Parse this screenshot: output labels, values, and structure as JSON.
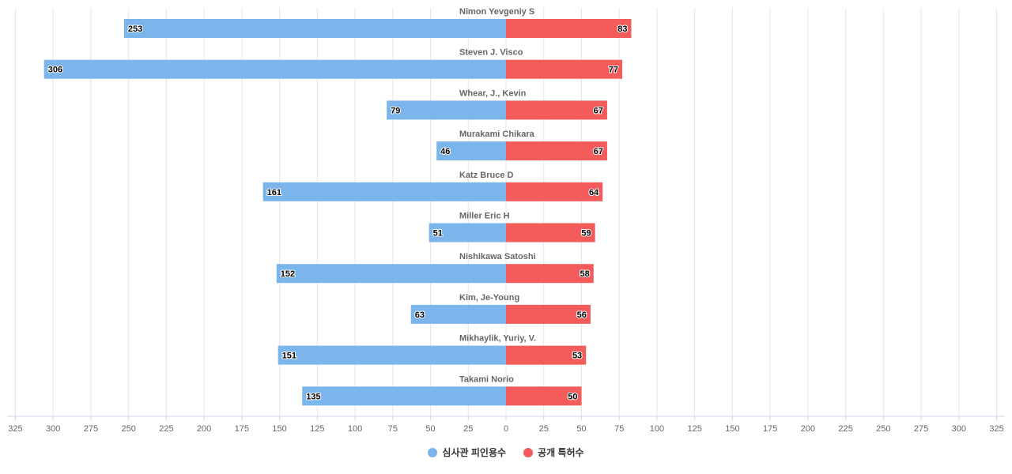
{
  "chart_data": {
    "type": "bar",
    "orientation": "horizontal-diverging",
    "categories": [
      "Nimon Yevgeniy S",
      "Steven J. Visco",
      "Whear, J., Kevin",
      "Murakami Chikara",
      "Katz Bruce D",
      "Miller Eric H",
      "Nishikawa Satoshi",
      "Kim, Je-Young",
      "Mikhaylik, Yuriy, V.",
      "Takami Norio"
    ],
    "series": [
      {
        "name": "심사관 피인용수",
        "color": "#7cb5ec",
        "side": "left",
        "values": [
          253,
          306,
          79,
          46,
          161,
          51,
          152,
          63,
          151,
          135
        ]
      },
      {
        "name": "공개 특허수",
        "color": "#f45b5b",
        "side": "right",
        "values": [
          83,
          77,
          67,
          67,
          64,
          59,
          58,
          56,
          53,
          50
        ]
      }
    ],
    "xlim": [
      -325,
      325
    ],
    "xticks": [
      "325",
      "300",
      "275",
      "250",
      "225",
      "200",
      "175",
      "150",
      "125",
      "100",
      "75",
      "50",
      "25",
      "0",
      "25",
      "50",
      "75",
      "100",
      "125",
      "150",
      "175",
      "200",
      "225",
      "250",
      "275",
      "300",
      "325"
    ],
    "grid": true,
    "legend": "bottom"
  }
}
